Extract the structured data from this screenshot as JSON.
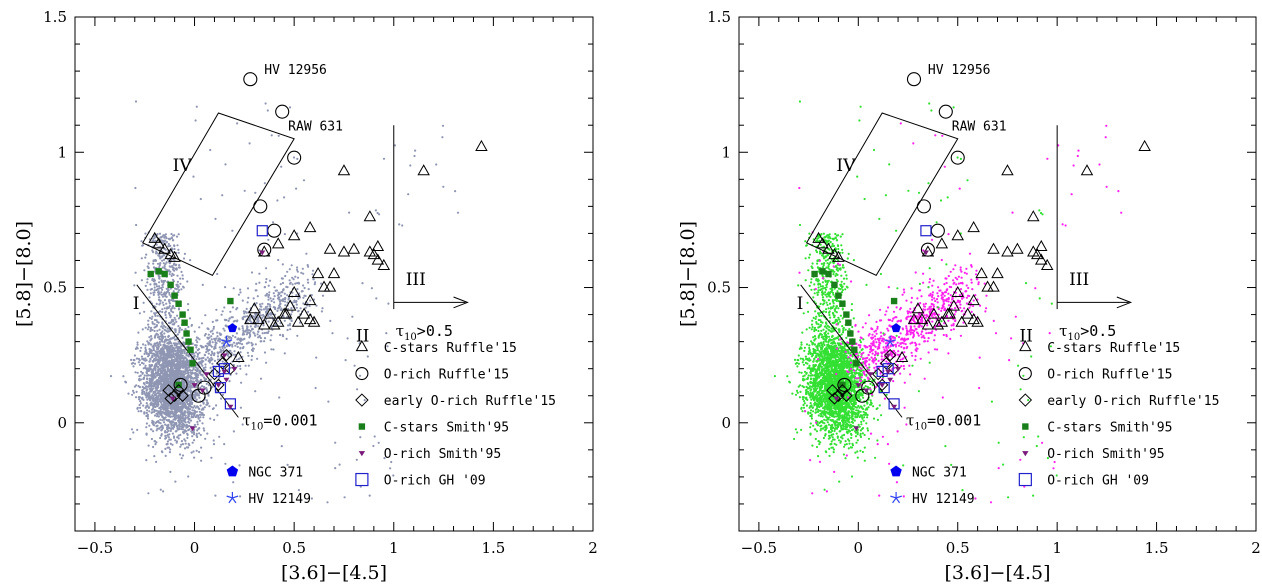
{
  "chart_data": [
    {
      "type": "scatter",
      "xlabel": "[3.6]−[4.5]",
      "ylabel": "[5.8]−[8.0]",
      "xlim": [
        -0.6,
        2.0
      ],
      "ylim": [
        -0.4,
        1.5
      ],
      "xticks": [
        "−0.5",
        "0",
        "0.5",
        "1",
        "1.5",
        "2"
      ],
      "yticks": [
        "0",
        "0.5",
        "1",
        "1.5"
      ],
      "xtick_values": [
        -0.5,
        0,
        0.5,
        1,
        1.5,
        2
      ],
      "ytick_values": [
        0,
        0.5,
        1,
        1.5
      ],
      "background_colors": [
        "#8f96b3"
      ],
      "annotations": {
        "I": "I",
        "II": "II",
        "III": "III",
        "IV": "IV",
        "tau_low": "τ",
        "tau_low_sub": "10",
        "tau_low_rest": "=0.001",
        "tau_high": "τ",
        "tau_high_sub": "10",
        "tau_high_rest": ">0.5",
        "hv12956": "HV 12956",
        "raw631": "RAW 631"
      },
      "legend_left": [
        {
          "symbol": "pentagon",
          "label": "NGC 371",
          "color": "#0000ee"
        },
        {
          "symbol": "star",
          "label": "HV 12149",
          "color": "#3344ee"
        }
      ],
      "legend_right": [
        {
          "symbol": "triangle",
          "label": "C-stars Ruffle'15",
          "color": "#000000"
        },
        {
          "symbol": "circle",
          "label": "O-rich Ruffle'15",
          "color": "#000000"
        },
        {
          "symbol": "diamond",
          "label": "early O-rich Ruffle'15",
          "color": "#000000"
        },
        {
          "symbol": "square-filled",
          "label": "C-stars Smith'95",
          "color": "#1a7f1a"
        },
        {
          "symbol": "tri-down-filled",
          "label": "O-rich Smith'95",
          "color": "#7a1a7a"
        },
        {
          "symbol": "square-open",
          "label": "O-rich GH '09",
          "color": "#2222cc"
        }
      ],
      "series": {
        "c_stars_ruffle": [
          [
            -0.2,
            0.68
          ],
          [
            -0.18,
            0.66
          ],
          [
            -0.15,
            0.64
          ],
          [
            -0.12,
            0.62
          ],
          [
            -0.1,
            0.61
          ],
          [
            0.35,
            0.63
          ],
          [
            0.42,
            0.66
          ],
          [
            0.5,
            0.69
          ],
          [
            0.58,
            0.72
          ],
          [
            0.62,
            0.55
          ],
          [
            0.68,
            0.64
          ],
          [
            0.75,
            0.63
          ],
          [
            0.8,
            0.64
          ],
          [
            0.88,
            0.76
          ],
          [
            0.9,
            0.62
          ],
          [
            0.92,
            0.6
          ],
          [
            0.95,
            0.58
          ],
          [
            0.92,
            0.65
          ],
          [
            0.88,
            0.63
          ],
          [
            0.7,
            0.55
          ],
          [
            0.65,
            0.5
          ],
          [
            0.58,
            0.45
          ],
          [
            0.5,
            0.48
          ],
          [
            0.45,
            0.4
          ],
          [
            0.4,
            0.36
          ],
          [
            0.38,
            0.4
          ],
          [
            0.32,
            0.38
          ],
          [
            0.28,
            0.38
          ],
          [
            0.3,
            0.42
          ],
          [
            0.48,
            0.43
          ],
          [
            0.55,
            0.4
          ],
          [
            0.6,
            0.37
          ],
          [
            0.58,
            0.38
          ],
          [
            0.52,
            0.37
          ],
          [
            0.22,
            0.24
          ],
          [
            0.35,
            0.36
          ],
          [
            0.42,
            0.37
          ],
          [
            0.46,
            0.4
          ],
          [
            0.75,
            0.93
          ],
          [
            0.68,
            0.5
          ],
          [
            1.15,
            0.93
          ],
          [
            1.44,
            1.02
          ]
        ],
        "o_rich_ruffle": [
          [
            0.28,
            1.27
          ],
          [
            0.44,
            1.15
          ],
          [
            0.5,
            0.98
          ],
          [
            0.33,
            0.8
          ],
          [
            0.4,
            0.71
          ],
          [
            0.35,
            0.64
          ],
          [
            0.05,
            0.13
          ],
          [
            -0.07,
            0.14
          ],
          [
            0.02,
            0.1
          ]
        ],
        "early_o_rich_ruffle": [
          [
            -0.13,
            0.12
          ],
          [
            -0.12,
            0.09
          ],
          [
            -0.1,
            0.1
          ],
          [
            -0.08,
            0.12
          ],
          [
            -0.06,
            0.1
          ],
          [
            0.1,
            0.18
          ],
          [
            0.14,
            0.22
          ],
          [
            0.16,
            0.25
          ],
          [
            0.18,
            0.2
          ],
          [
            0.12,
            0.14
          ]
        ],
        "c_stars_smith": [
          [
            -0.22,
            0.55
          ],
          [
            -0.18,
            0.56
          ],
          [
            -0.15,
            0.55
          ],
          [
            -0.12,
            0.51
          ],
          [
            -0.1,
            0.47
          ],
          [
            -0.08,
            0.44
          ],
          [
            -0.06,
            0.4
          ],
          [
            -0.05,
            0.37
          ],
          [
            -0.04,
            0.33
          ],
          [
            -0.03,
            0.3
          ],
          [
            -0.02,
            0.27
          ],
          [
            -0.01,
            0.22
          ],
          [
            0.18,
            0.45
          ],
          [
            -0.08,
            0.14
          ]
        ],
        "o_rich_smith": [
          [
            0.0,
            0.14
          ],
          [
            -0.11,
            0.09
          ],
          [
            0.15,
            0.25
          ],
          [
            0.2,
            0.2
          ],
          [
            0.12,
            0.14
          ],
          [
            0.06,
            0.18
          ],
          [
            0.34,
            0.63
          ],
          [
            0.16,
            0.16
          ],
          [
            0.18,
            0.06
          ],
          [
            0.04,
            0.12
          ],
          [
            0.15,
            0.19
          ],
          [
            -0.01,
            -0.02
          ]
        ],
        "o_rich_gh09": [
          [
            0.34,
            0.71
          ],
          [
            0.15,
            0.2
          ],
          [
            0.12,
            0.19
          ],
          [
            0.18,
            0.07
          ],
          [
            0.13,
            0.13
          ]
        ],
        "ngc371": [
          [
            0.19,
            0.35
          ]
        ],
        "hv12149": [
          [
            0.16,
            0.3
          ]
        ]
      }
    },
    {
      "type": "scatter",
      "xlabel": "[3.6]−[4.5]",
      "ylabel": "[5.8]−[8.0]",
      "xlim": [
        -0.6,
        2.0
      ],
      "ylim": [
        -0.4,
        1.5
      ],
      "xticks": [
        "−0.5",
        "0",
        "0.5",
        "1",
        "1.5",
        "2"
      ],
      "yticks": [
        "0",
        "0.5",
        "1",
        "1.5"
      ],
      "xtick_values": [
        -0.5,
        0,
        0.5,
        1,
        1.5,
        2
      ],
      "ytick_values": [
        0,
        0.5,
        1,
        1.5
      ],
      "background_colors": [
        "#33e033",
        "#ff22ee"
      ],
      "annotations": {
        "I": "I",
        "II": "II",
        "III": "III",
        "IV": "IV",
        "tau_low": "τ",
        "tau_low_sub": "10",
        "tau_low_rest": "=0.001",
        "tau_high": "τ",
        "tau_high_sub": "10",
        "tau_high_rest": ">0.5",
        "hv12956": "HV 12956",
        "raw631": "RAW 631"
      },
      "legend_left": [
        {
          "symbol": "pentagon",
          "label": "NGC 371",
          "color": "#0000ee"
        },
        {
          "symbol": "star",
          "label": "HV 12149",
          "color": "#3344ee"
        }
      ],
      "legend_right": [
        {
          "symbol": "triangle",
          "label": "C-stars Ruffle'15",
          "color": "#000000"
        },
        {
          "symbol": "circle",
          "label": "O-rich Ruffle'15",
          "color": "#000000"
        },
        {
          "symbol": "diamond",
          "label": "early O-rich Ruffle'15",
          "color": "#000000"
        },
        {
          "symbol": "square-filled",
          "label": "C-stars Smith'95",
          "color": "#1a7f1a"
        },
        {
          "symbol": "tri-down-filled",
          "label": "O-rich Smith'95",
          "color": "#7a1a7a"
        },
        {
          "symbol": "square-open",
          "label": "O-rich GH '09",
          "color": "#2222cc"
        }
      ],
      "series": {
        "c_stars_ruffle": [
          [
            -0.2,
            0.68
          ],
          [
            -0.18,
            0.66
          ],
          [
            -0.15,
            0.64
          ],
          [
            -0.12,
            0.62
          ],
          [
            -0.1,
            0.61
          ],
          [
            0.35,
            0.63
          ],
          [
            0.42,
            0.66
          ],
          [
            0.5,
            0.69
          ],
          [
            0.58,
            0.72
          ],
          [
            0.62,
            0.55
          ],
          [
            0.68,
            0.64
          ],
          [
            0.75,
            0.63
          ],
          [
            0.8,
            0.64
          ],
          [
            0.88,
            0.76
          ],
          [
            0.9,
            0.62
          ],
          [
            0.92,
            0.6
          ],
          [
            0.95,
            0.58
          ],
          [
            0.92,
            0.65
          ],
          [
            0.88,
            0.63
          ],
          [
            0.7,
            0.55
          ],
          [
            0.65,
            0.5
          ],
          [
            0.58,
            0.45
          ],
          [
            0.5,
            0.48
          ],
          [
            0.45,
            0.4
          ],
          [
            0.4,
            0.36
          ],
          [
            0.38,
            0.4
          ],
          [
            0.32,
            0.38
          ],
          [
            0.28,
            0.38
          ],
          [
            0.3,
            0.42
          ],
          [
            0.48,
            0.43
          ],
          [
            0.55,
            0.4
          ],
          [
            0.6,
            0.37
          ],
          [
            0.58,
            0.38
          ],
          [
            0.52,
            0.37
          ],
          [
            0.22,
            0.24
          ],
          [
            0.35,
            0.36
          ],
          [
            0.42,
            0.37
          ],
          [
            0.46,
            0.4
          ],
          [
            0.75,
            0.93
          ],
          [
            0.68,
            0.5
          ],
          [
            1.15,
            0.93
          ],
          [
            1.44,
            1.02
          ]
        ],
        "o_rich_ruffle": [
          [
            0.28,
            1.27
          ],
          [
            0.44,
            1.15
          ],
          [
            0.5,
            0.98
          ],
          [
            0.33,
            0.8
          ],
          [
            0.4,
            0.71
          ],
          [
            0.35,
            0.64
          ],
          [
            0.05,
            0.13
          ],
          [
            -0.07,
            0.14
          ],
          [
            0.02,
            0.1
          ]
        ],
        "early_o_rich_ruffle": [
          [
            -0.13,
            0.12
          ],
          [
            -0.12,
            0.09
          ],
          [
            -0.1,
            0.1
          ],
          [
            -0.08,
            0.12
          ],
          [
            -0.06,
            0.1
          ],
          [
            0.1,
            0.18
          ],
          [
            0.14,
            0.22
          ],
          [
            0.16,
            0.25
          ],
          [
            0.18,
            0.2
          ],
          [
            0.12,
            0.14
          ]
        ],
        "c_stars_smith": [
          [
            -0.22,
            0.55
          ],
          [
            -0.18,
            0.56
          ],
          [
            -0.15,
            0.55
          ],
          [
            -0.12,
            0.51
          ],
          [
            -0.1,
            0.47
          ],
          [
            -0.08,
            0.44
          ],
          [
            -0.06,
            0.4
          ],
          [
            -0.05,
            0.37
          ],
          [
            -0.04,
            0.33
          ],
          [
            -0.03,
            0.3
          ],
          [
            -0.02,
            0.27
          ],
          [
            -0.01,
            0.22
          ],
          [
            0.18,
            0.45
          ],
          [
            -0.08,
            0.14
          ]
        ],
        "o_rich_smith": [
          [
            0.0,
            0.14
          ],
          [
            -0.11,
            0.09
          ],
          [
            0.15,
            0.25
          ],
          [
            0.2,
            0.2
          ],
          [
            0.12,
            0.14
          ],
          [
            0.06,
            0.18
          ],
          [
            0.34,
            0.63
          ],
          [
            0.16,
            0.16
          ],
          [
            0.18,
            0.06
          ],
          [
            0.04,
            0.12
          ],
          [
            0.15,
            0.19
          ],
          [
            -0.01,
            -0.02
          ]
        ],
        "o_rich_gh09": [
          [
            0.34,
            0.71
          ],
          [
            0.15,
            0.2
          ],
          [
            0.12,
            0.19
          ],
          [
            0.18,
            0.07
          ],
          [
            0.13,
            0.13
          ]
        ],
        "ngc371": [
          [
            0.19,
            0.35
          ]
        ],
        "hv12149": [
          [
            0.16,
            0.3
          ]
        ]
      }
    }
  ]
}
